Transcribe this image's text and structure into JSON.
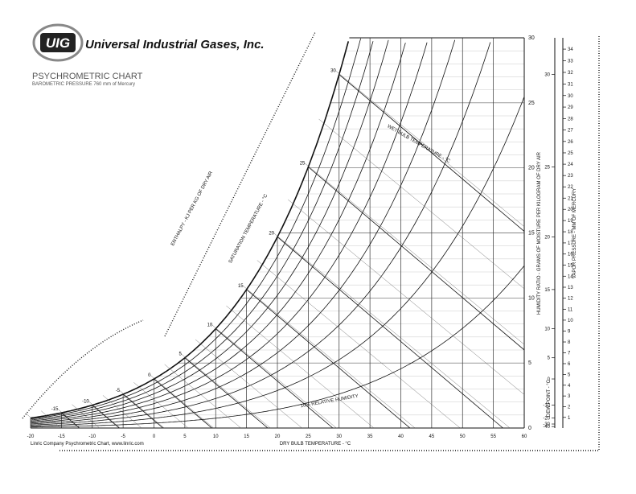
{
  "header": {
    "logo": "UIG",
    "company": "Universal Industrial Gases, Inc.",
    "title": "PSYCHROMETRIC CHART",
    "pressure": {
      "label": "BAROMETRIC PRESSURE",
      "value": 760,
      "unit": "mm of Mercury"
    }
  },
  "footer": "Linric Company Psychrometric Chart, www.linric.com",
  "chart_data": {
    "type": "psychrometric",
    "x_label": "DRY BULB TEMPERATURE - °C",
    "y_label": "HUMIDITY RATIO - GRAMS OF MOISTURE PER KILOGRAM OF DRY AIR",
    "xlim": [
      -20,
      60
    ],
    "xticks": [
      -20,
      -15,
      -10,
      -5,
      0,
      5,
      10,
      15,
      20,
      25,
      30,
      35,
      40,
      45,
      50,
      55,
      60
    ],
    "ylim": [
      0,
      30
    ],
    "yticks": [
      0,
      5,
      10,
      15,
      20,
      25,
      30
    ],
    "rh_curves": [
      10,
      20,
      30,
      40,
      50,
      60,
      70,
      80,
      90
    ],
    "rh_label": "10% RELATIVE HUMIDITY",
    "saturation_label": "SATURATION TEMPERATURE - °C",
    "saturation_ticks": [
      -15,
      -10,
      -5,
      0,
      5,
      10,
      15,
      20,
      25,
      30
    ],
    "wet_bulb_label": "WET BULB TEMPERATURE - °C",
    "enthalpy_label": "ENTHALPY - KJ PER KG OF DRY AIR",
    "vapor_label": "VAPOR PRESSURE - MM OF MERCURY",
    "vapor_ticks": [
      1,
      2,
      3,
      4,
      5,
      6,
      7,
      8,
      9,
      10,
      11,
      12,
      13,
      14,
      15,
      16,
      17,
      18,
      19,
      20,
      21,
      22,
      23,
      24,
      25,
      26,
      27,
      28,
      29,
      30,
      31,
      32,
      33,
      34
    ],
    "dew_label": "DEW POINT - °C",
    "dew_ticks": [
      -40,
      -30,
      -20,
      -10,
      0,
      5,
      10,
      15,
      20,
      25,
      30
    ]
  }
}
